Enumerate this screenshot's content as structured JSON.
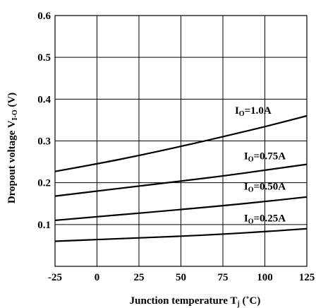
{
  "chart_data": {
    "type": "line",
    "xlabel": {
      "main": "Junction temperature T",
      "sub": "j",
      "unit": " (˚C)"
    },
    "ylabel": {
      "main": "Dropout voltage V",
      "sub": "I-O",
      "unit": " (V)"
    },
    "xlim": [
      -25,
      125
    ],
    "ylim": [
      0,
      0.6
    ],
    "x_ticks": [
      "-25",
      "0",
      "25",
      "50",
      "75",
      "100",
      "125"
    ],
    "y_ticks": [
      "0.1",
      "0.2",
      "0.3",
      "0.4",
      "0.5",
      "0.6"
    ],
    "grid": true,
    "x": [
      -25,
      0,
      25,
      50,
      75,
      100,
      125
    ],
    "series": [
      {
        "name": "I",
        "sub": "O",
        "suffix": "=1.0A",
        "values": [
          0.227,
          0.245,
          0.265,
          0.287,
          0.31,
          0.334,
          0.36
        ]
      },
      {
        "name": "I",
        "sub": "O",
        "suffix": "=0.75A",
        "values": [
          0.168,
          0.18,
          0.192,
          0.204,
          0.216,
          0.23,
          0.244
        ]
      },
      {
        "name": "I",
        "sub": "O",
        "suffix": "=0.50A",
        "values": [
          0.11,
          0.119,
          0.127,
          0.136,
          0.145,
          0.155,
          0.166
        ]
      },
      {
        "name": "I",
        "sub": "O",
        "suffix": "=0.25A",
        "values": [
          0.06,
          0.064,
          0.068,
          0.072,
          0.077,
          0.083,
          0.09
        ]
      }
    ]
  }
}
